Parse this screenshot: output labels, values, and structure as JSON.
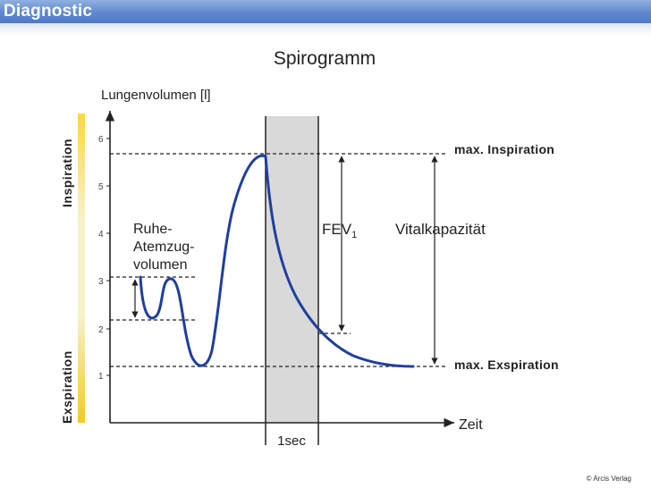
{
  "header": {
    "title": "Diagnostic"
  },
  "diagram": {
    "title": "Spirogramm",
    "y_axis_label": "Lungenvolumen [l]",
    "x_axis_label": "Zeit",
    "y_ticks": [
      "1",
      "2",
      "3",
      "4",
      "5",
      "6"
    ],
    "side_labels": {
      "top": "Inspiration",
      "bottom": "Exspiration"
    },
    "tidal_volume_label": [
      "Ruhe-",
      "Atemzug-",
      "volumen"
    ],
    "fev1_label": "FEV",
    "fev1_subscript": "1",
    "vital_capacity_label": "Vitalkapazität",
    "max_inspiration_label": "max. Inspiration",
    "max_expiration_label": "max. Exspiration",
    "time_window_label": "1sec",
    "colors": {
      "curve": "#1f3f9e",
      "shaded_band": "#d9d9d9",
      "header": "#5f88cf"
    }
  },
  "footer": {
    "copyright": "© Arcis Verlag"
  }
}
